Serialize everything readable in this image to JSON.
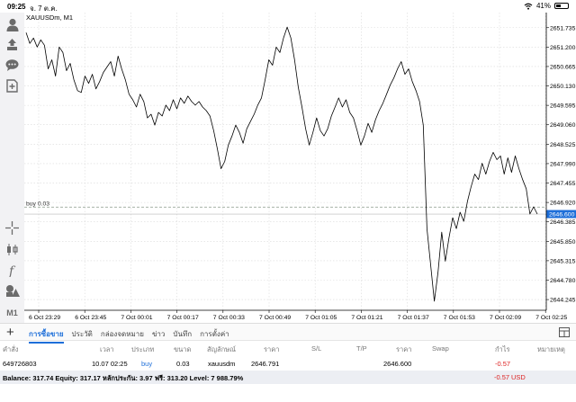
{
  "status_bar": {
    "time": "09:25",
    "date": "จ. 7 ต.ค.",
    "battery": "41%",
    "battery_level": 0.41
  },
  "chart": {
    "symbol_label": "XAUUSDm, M1",
    "order_line_label": "buy 0.03",
    "current_price": "2646.600",
    "colors": {
      "line": "#000000",
      "grid": "#d9d9d9",
      "price_tag": "#1e6fd9",
      "order_line": "#9aa89a"
    }
  },
  "chart_data": {
    "type": "line",
    "title": "XAUUSDm, M1",
    "x_ticks": [
      "6 Oct 23:29",
      "6 Oct 23:45",
      "7 Oct 00:01",
      "7 Oct 00:17",
      "7 Oct 00:33",
      "7 Oct 00:49",
      "7 Oct 01:05",
      "7 Oct 01:21",
      "7 Oct 01:37",
      "7 Oct 01:53",
      "7 Oct 02:09",
      "7 Oct 02:25"
    ],
    "y_ticks": [
      2651.735,
      2651.2,
      2650.665,
      2650.13,
      2649.595,
      2649.06,
      2648.525,
      2647.99,
      2647.455,
      2646.92,
      2646.385,
      2645.85,
      2645.315,
      2644.78,
      2644.245
    ],
    "ylim": [
      2643.95,
      2652.15
    ],
    "order_price": 2646.791,
    "current_price": 2646.6,
    "grid": true,
    "values": [
      2651.6,
      2651.3,
      2651.45,
      2651.2,
      2651.4,
      2651.25,
      2650.6,
      2650.85,
      2650.4,
      2651.2,
      2651.05,
      2650.55,
      2650.75,
      2650.3,
      2650.0,
      2649.95,
      2650.4,
      2650.2,
      2650.45,
      2650.05,
      2650.25,
      2650.5,
      2650.65,
      2650.8,
      2650.4,
      2650.95,
      2650.6,
      2650.3,
      2649.9,
      2649.75,
      2649.55,
      2649.9,
      2649.7,
      2649.25,
      2649.35,
      2649.05,
      2649.4,
      2649.3,
      2649.6,
      2649.45,
      2649.75,
      2649.5,
      2649.8,
      2649.65,
      2649.85,
      2649.7,
      2649.6,
      2649.7,
      2649.55,
      2649.45,
      2649.3,
      2648.9,
      2648.4,
      2647.85,
      2648.05,
      2648.5,
      2648.75,
      2649.05,
      2648.85,
      2648.55,
      2648.95,
      2649.15,
      2649.35,
      2649.6,
      2649.8,
      2650.3,
      2650.85,
      2650.7,
      2651.2,
      2651.05,
      2651.45,
      2651.75,
      2651.45,
      2650.85,
      2650.1,
      2649.55,
      2648.95,
      2648.5,
      2648.85,
      2649.25,
      2648.9,
      2648.75,
      2648.95,
      2649.3,
      2649.55,
      2649.8,
      2649.55,
      2649.75,
      2649.4,
      2649.25,
      2648.9,
      2648.5,
      2648.75,
      2649.1,
      2648.85,
      2649.2,
      2649.45,
      2649.65,
      2649.9,
      2650.15,
      2650.35,
      2650.6,
      2650.8,
      2650.45,
      2650.6,
      2650.25,
      2650.0,
      2649.7,
      2649.05,
      2646.2,
      2645.2,
      2644.2,
      2645.0,
      2646.1,
      2645.3,
      2645.95,
      2646.5,
      2646.2,
      2646.65,
      2646.4,
      2646.95,
      2647.35,
      2647.7,
      2647.55,
      2648.0,
      2647.7,
      2648.05,
      2648.3,
      2648.1,
      2648.2,
      2647.7,
      2648.15,
      2647.75,
      2648.2,
      2647.85,
      2647.55,
      2647.3,
      2646.6,
      2646.8,
      2646.6
    ]
  },
  "toolbar": {
    "timeframe": "M1",
    "icons": [
      "account-icon",
      "trade-icon",
      "chat-icon",
      "new-order-icon",
      "crosshair-icon",
      "chart-type-icon",
      "indicator-icon",
      "objects-icon"
    ]
  },
  "bottom": {
    "tabs": [
      "การซื้อขาย",
      "ประวัติ",
      "กล่องจดหมาย",
      "ข่าว",
      "บันทึก",
      "การตั้งค่า"
    ],
    "columns": [
      "คำสั่ง",
      "เวลา",
      "ประเภท",
      "ขนาด",
      "สัญลักษณ์",
      "ราคา",
      "S/L",
      "T/P",
      "ราคา",
      "Swap",
      "กำไร",
      "หมายเหตุ"
    ],
    "order": {
      "ticket": "649726803",
      "time": "10.07 02:25",
      "type": "buy",
      "volume": "0.03",
      "symbol": "xauusdm",
      "open_price": "2646.791",
      "sl": "",
      "tp": "",
      "current_price": "2646.600",
      "swap": "",
      "profit": "-0.57",
      "comment": ""
    },
    "balance_line": "Balance: 317.74 Equity: 317.17 หลักประกัน: 3.97 ฟรี: 313.20 Level: 7 988.79%",
    "total_profit": "-0.57",
    "currency": "USD"
  }
}
